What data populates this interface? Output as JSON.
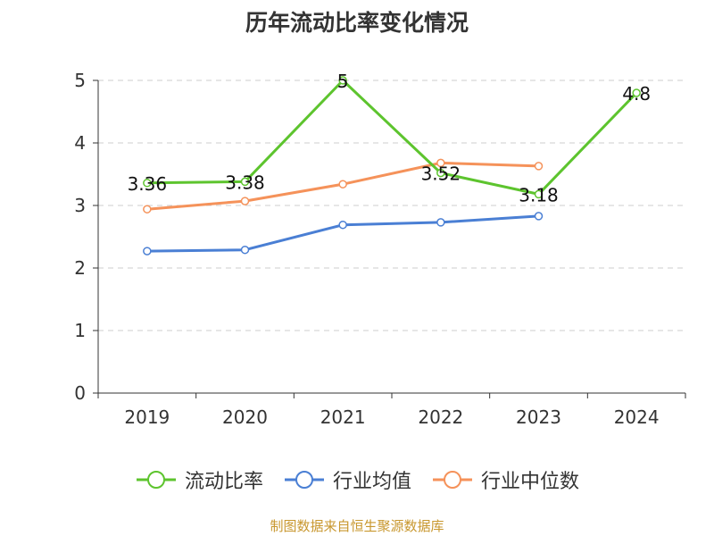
{
  "chart_data": {
    "type": "line",
    "title": "历年流动比率变化情况",
    "categories": [
      "2019",
      "2020",
      "2021",
      "2022",
      "2023",
      "2024"
    ],
    "ylim": [
      0,
      5
    ],
    "yticks": [
      0,
      1,
      2,
      3,
      4,
      5
    ],
    "grid": true,
    "legend_position": "bottom",
    "series": [
      {
        "name": "流动比率",
        "color": "#5dc42e",
        "values": [
          3.36,
          3.38,
          5,
          3.52,
          3.18,
          4.8
        ],
        "labels": [
          "3.36",
          "3.38",
          "5",
          "3.52",
          "3.18",
          "4.8"
        ]
      },
      {
        "name": "行业均值",
        "color": "#4a7fd4",
        "values": [
          2.27,
          2.29,
          2.69,
          2.73,
          2.83,
          null
        ]
      },
      {
        "name": "行业中位数",
        "color": "#f5925a",
        "values": [
          2.94,
          3.07,
          3.34,
          3.68,
          3.63,
          null
        ]
      }
    ]
  },
  "source": "制图数据来自恒生聚源数据库"
}
